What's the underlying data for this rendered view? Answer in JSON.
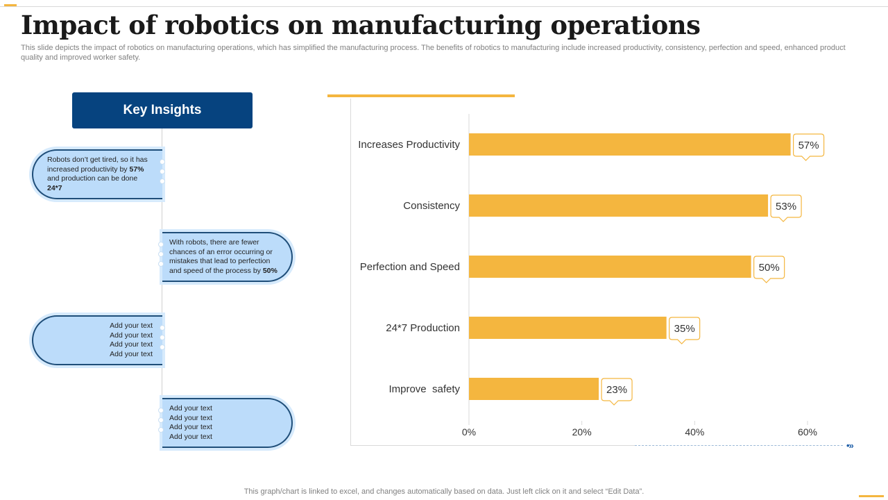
{
  "slide": {
    "title": "Impact of robotics on manufacturing operations",
    "subtitle": "This slide depicts the impact of robotics on manufacturing operations, which has simplified the manufacturing process. The benefits of robotics to manufacturing include increased productivity, consistency, perfection and speed, enhanced product quality and improved worker safety.",
    "footer": "This graph/chart is linked to excel,  and changes automatically based on data. Just left click on it and select “Edit Data”."
  },
  "insights": {
    "heading": "Key Insights",
    "items": [
      {
        "pre": "Robots don’t get tired, so it has increased productivity by ",
        "bold1": "57%",
        "mid": " and production can be done ",
        "bold2": "24*7"
      },
      {
        "pre": "With robots, there are fewer chances of an error occurring or mistakes that lead to perfection and speed of the process by ",
        "bold1": "50%"
      },
      {
        "lines": [
          "Add your text",
          "Add your text",
          "Add your text",
          "Add your text"
        ]
      },
      {
        "lines": [
          "Add your text",
          "Add your text",
          "Add your text",
          "Add your text"
        ]
      }
    ]
  },
  "colors": {
    "bar": "#f4b63f",
    "header_bg": "#06437f",
    "pill_bg": "#bcdcfa",
    "accent": "#f4b63f"
  },
  "chart_data": {
    "type": "bar",
    "orientation": "horizontal",
    "categories": [
      "Increases Productivity",
      "Consistency",
      "Perfection and Speed",
      "24*7 Production",
      "Improve  safety"
    ],
    "values": [
      57,
      53,
      50,
      35,
      23
    ],
    "data_labels": [
      "57%",
      "53%",
      "50%",
      "35%",
      "23%"
    ],
    "xlim": [
      0,
      60
    ],
    "x_ticks": [
      "0%",
      "20%",
      "40%",
      "60%"
    ],
    "grid": false,
    "legend": "none"
  }
}
